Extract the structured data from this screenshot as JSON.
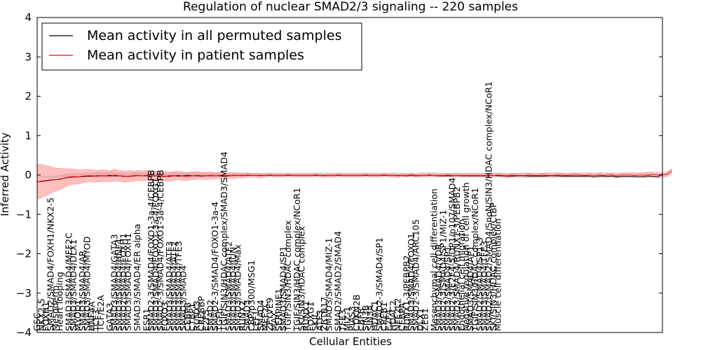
{
  "chart_data": {
    "type": "line",
    "title": "Regulation of nuclear SMAD2/3 signaling -- 220 samples",
    "xlabel": "Cellular Entities",
    "ylabel": "Inferred Activity",
    "ylim": [
      -4,
      4
    ],
    "yticks": [
      -4,
      -3,
      -2,
      -1,
      0,
      1,
      2,
      3,
      4
    ],
    "grid": false,
    "legend_position": "top-left",
    "colors": {
      "permuted_line": "#000000",
      "permuted_band": "#bbbbbb",
      "patient_line": "#ff0000",
      "patient_band": "#ff7070"
    },
    "series": [
      {
        "name": "Mean activity in all permuted samples",
        "key": "permuted",
        "values": [
          -0.18,
          -0.16,
          -0.15,
          -0.13,
          -0.12,
          -0.11,
          -0.08,
          -0.06,
          -0.05,
          -0.05,
          -0.04,
          -0.03,
          -0.03,
          -0.02,
          -0.02,
          -0.02,
          -0.01,
          -0.02,
          -0.02,
          -0.03,
          -0.04,
          -0.02,
          -0.01,
          -0.02,
          -0.02,
          -0.03,
          -0.02,
          -0.03,
          -0.04,
          -0.02,
          -0.02,
          -0.03,
          -0.02,
          -0.01,
          -0.02,
          -0.02,
          -0.03,
          -0.02,
          -0.02,
          -0.02,
          -0.02,
          -0.02,
          -0.02,
          -0.01,
          -0.01,
          -0.01,
          -0.01,
          -0.01,
          -0.01,
          -0.01,
          -0.01,
          -0.01,
          -0.01,
          -0.01,
          -0.01,
          -0.01,
          -0.01,
          -0.01,
          -0.01,
          -0.01,
          -0.01,
          -0.01,
          -0.01,
          -0.01,
          -0.01,
          -0.01,
          -0.01,
          -0.01,
          -0.01,
          -0.01,
          -0.01,
          -0.01,
          -0.01,
          -0.01,
          -0.01,
          -0.01,
          -0.01,
          -0.01,
          -0.01,
          -0.01,
          -0.01,
          -0.02,
          -0.01,
          -0.02,
          -0.01,
          -0.01,
          -0.01,
          -0.01,
          -0.02,
          -0.02,
          -0.02,
          -0.02,
          -0.01,
          -0.02,
          -0.02,
          -0.02,
          -0.02,
          -0.02,
          -0.02,
          -0.02,
          -0.01,
          -0.02,
          -0.02,
          -0.03,
          -0.03,
          -0.02,
          -0.02,
          -0.02,
          -0.03,
          -0.03,
          -0.03,
          -0.03,
          -0.02,
          -0.02,
          -0.02,
          -0.03,
          -0.03,
          -0.03,
          -0.03,
          -0.03,
          -0.03,
          -0.03,
          -0.05,
          -0.03,
          -0.03,
          -0.04,
          -0.03,
          -0.05,
          -0.04,
          -0.04,
          -0.04,
          -0.04,
          -0.05,
          -0.04,
          -0.03,
          -0.04,
          -0.05,
          0.03
        ],
        "band": [
          0.12,
          0.12,
          0.11,
          0.1,
          0.1,
          0.1,
          0.1,
          0.1,
          0.09,
          0.09,
          0.09,
          0.09,
          0.09,
          0.09,
          0.09,
          0.09,
          0.09,
          0.09,
          0.08,
          0.08,
          0.08,
          0.08,
          0.08,
          0.08,
          0.08,
          0.08,
          0.08,
          0.08,
          0.08,
          0.08,
          0.08,
          0.08,
          0.08,
          0.08,
          0.08,
          0.08,
          0.08,
          0.07,
          0.07,
          0.07,
          0.07,
          0.07,
          0.07,
          0.07,
          0.07,
          0.06,
          0.06,
          0.06,
          0.06,
          0.06,
          0.06,
          0.06,
          0.06,
          0.06,
          0.06,
          0.06,
          0.06,
          0.06,
          0.06,
          0.06,
          0.06,
          0.06,
          0.06,
          0.06,
          0.06,
          0.06,
          0.06,
          0.06,
          0.06,
          0.06,
          0.06,
          0.06,
          0.06,
          0.06,
          0.06,
          0.06,
          0.06,
          0.06,
          0.06,
          0.06,
          0.06,
          0.06,
          0.06,
          0.06,
          0.07,
          0.07,
          0.07,
          0.07,
          0.07,
          0.07,
          0.07,
          0.07,
          0.07,
          0.07,
          0.07,
          0.07,
          0.07,
          0.07,
          0.07,
          0.07,
          0.07,
          0.07,
          0.07,
          0.07,
          0.07,
          0.07,
          0.07,
          0.08,
          0.08,
          0.08,
          0.08,
          0.08,
          0.08,
          0.08,
          0.08,
          0.08,
          0.08,
          0.08,
          0.08,
          0.08,
          0.08,
          0.09,
          0.09,
          0.09,
          0.09,
          0.09,
          0.09,
          0.09,
          0.1,
          0.1,
          0.1,
          0.1,
          0.1,
          0.1,
          0.1,
          0.1
        ]
      },
      {
        "name": "Mean activity in patient samples",
        "key": "patient",
        "values": [
          -0.18,
          -0.15,
          -0.14,
          -0.12,
          -0.12,
          -0.1,
          -0.08,
          -0.05,
          -0.04,
          -0.05,
          -0.03,
          -0.02,
          -0.02,
          -0.03,
          -0.02,
          -0.02,
          -0.03,
          0.0,
          -0.02,
          -0.04,
          -0.03,
          -0.03,
          -0.01,
          -0.02,
          -0.01,
          -0.02,
          -0.02,
          -0.02,
          -0.03,
          -0.04,
          -0.02,
          -0.01,
          -0.03,
          -0.04,
          -0.02,
          -0.01,
          -0.02,
          -0.02,
          -0.01,
          -0.02,
          -0.01,
          -0.02,
          -0.01,
          -0.02,
          -0.01,
          -0.02,
          0.0,
          -0.01,
          -0.01,
          -0.02,
          -0.01,
          0.0,
          -0.01,
          -0.01,
          -0.01,
          0.0,
          -0.01,
          -0.01,
          -0.01,
          -0.01,
          -0.01,
          0.0,
          -0.01,
          -0.02,
          -0.01,
          -0.01,
          0.0,
          -0.01,
          -0.01,
          -0.01,
          -0.01,
          -0.01,
          0.0,
          -0.01,
          -0.01,
          -0.01,
          0.0,
          -0.01,
          -0.01,
          -0.02,
          -0.01,
          -0.01,
          0.0,
          -0.01,
          -0.01,
          -0.01,
          0.0,
          -0.01,
          -0.01,
          -0.01,
          0.0,
          -0.01,
          -0.01,
          -0.01,
          -0.01,
          -0.01,
          -0.01,
          -0.01,
          -0.01,
          -0.01,
          -0.01,
          0.0,
          -0.01,
          -0.02,
          0.0,
          -0.01,
          -0.01,
          -0.01,
          0.0,
          -0.01,
          -0.01,
          0.0,
          -0.01,
          -0.01,
          0.0,
          0.0,
          -0.01,
          0.0,
          0.0,
          0.0,
          -0.01,
          0.0,
          -0.01,
          0.0,
          -0.01,
          0.0,
          0.0,
          -0.02,
          0.0,
          0.0,
          0.0,
          -0.01,
          0.0,
          0.0,
          0.0,
          0.01,
          0.0,
          0.0,
          0.02,
          0.1
        ],
        "band": [
          0.45,
          0.42,
          0.38,
          0.34,
          0.3,
          0.27,
          0.24,
          0.21,
          0.19,
          0.18,
          0.17,
          0.16,
          0.16,
          0.15,
          0.15,
          0.15,
          0.14,
          0.15,
          0.14,
          0.14,
          0.14,
          0.13,
          0.13,
          0.13,
          0.13,
          0.12,
          0.12,
          0.12,
          0.12,
          0.12,
          0.11,
          0.11,
          0.11,
          0.1,
          0.1,
          0.1,
          0.09,
          0.09,
          0.09,
          0.08,
          0.08,
          0.07,
          0.07,
          0.07,
          0.06,
          0.06,
          0.06,
          0.05,
          0.05,
          0.05,
          0.04,
          0.04,
          0.04,
          0.04,
          0.04,
          0.04,
          0.04,
          0.04,
          0.04,
          0.04,
          0.04,
          0.04,
          0.04,
          0.04,
          0.04,
          0.04,
          0.04,
          0.04,
          0.04,
          0.04,
          0.04,
          0.04,
          0.04,
          0.04,
          0.04,
          0.04,
          0.04,
          0.04,
          0.04,
          0.04,
          0.04,
          0.04,
          0.04,
          0.04,
          0.04,
          0.04,
          0.04,
          0.04,
          0.04,
          0.04,
          0.04,
          0.04,
          0.04,
          0.04,
          0.04,
          0.04,
          0.04,
          0.04,
          0.04,
          0.04,
          0.04,
          0.04,
          0.05,
          0.05,
          0.05,
          0.05,
          0.05,
          0.05,
          0.05,
          0.05,
          0.05,
          0.05,
          0.05,
          0.05,
          0.05,
          0.05,
          0.05,
          0.05,
          0.05,
          0.05,
          0.05,
          0.05,
          0.05,
          0.05,
          0.05,
          0.05,
          0.05,
          0.05,
          0.05,
          0.05,
          0.05,
          0.05,
          0.05,
          0.06,
          0.06,
          0.06,
          0.06,
          0.06,
          0.06,
          0.06
        ]
      }
    ],
    "entity_labels": [
      {
        "label": "GSC",
        "x": 0
      },
      {
        "label": "NKX2-5",
        "x": 1
      },
      {
        "label": "FOXH1",
        "x": 2
      },
      {
        "label": "SMAD2/SMAD4/FOXH1/NKX2-5",
        "x": 3
      },
      {
        "label": "Mesoderm",
        "x": 4
      },
      {
        "label": "Heart looping",
        "x": 5
      },
      {
        "label": "SMAD3/SMAD4/MEF2C",
        "x": 7
      },
      {
        "label": "SMAD3/SMAD4/DLX1",
        "x": 8
      },
      {
        "label": "MYOD1",
        "x": 9
      },
      {
        "label": "SMAD3/SMAD4/AR",
        "x": 10
      },
      {
        "label": "SMAD3/SMAD4/MYOD",
        "x": 11
      },
      {
        "label": "HNF4A",
        "x": 12
      },
      {
        "label": "TCF3",
        "x": 13
      },
      {
        "label": "TCF/E2A",
        "x": 14
      },
      {
        "label": "GATA3",
        "x": 16
      },
      {
        "label": "SMAD3/SMAD4/GATA3",
        "x": 17
      },
      {
        "label": "SMAD3/SMAD4/HNF4",
        "x": 18
      },
      {
        "label": "SMAD2/SMAD4/FOXH1",
        "x": 19
      },
      {
        "label": "SMAD3/SMAD4/FOXH1",
        "x": 20
      },
      {
        "label": "SMAD3/SMAD4/ER alpha",
        "x": 22
      },
      {
        "label": "ESR1",
        "x": 24
      },
      {
        "label": "SMAD2-3/SMAD4/FOXO1-3a-4/CEBPB",
        "x": 25
      },
      {
        "label": "SMAD3/SMAD4/FOXO1-3a-4/FOXG1",
        "x": 26
      },
      {
        "label": "SMAD2-3/SMAD4/FOXO1-3a-4/CEBPB",
        "x": 27
      },
      {
        "label": "FOXO3",
        "x": 28
      },
      {
        "label": "SMAD3/SMAD4/ATF3",
        "x": 29
      },
      {
        "label": "SMAD3/SMAD4/ATF2",
        "x": 30
      },
      {
        "label": "SMAD3/SMAD4/TFE3",
        "x": 31
      },
      {
        "label": "SMAD3/SMAD4",
        "x": 32
      },
      {
        "label": "CEBPB",
        "x": 33
      },
      {
        "label": "CTBP1",
        "x": 34
      },
      {
        "label": "RUNX3",
        "x": 35
      },
      {
        "label": "CREBBP",
        "x": 36
      },
      {
        "label": "E2F5",
        "x": 37
      },
      {
        "label": "SMAD2",
        "x": 38
      },
      {
        "label": "SMAD2-3/SMAD4/FOXO1-3a-4",
        "x": 39
      },
      {
        "label": "TGFb",
        "x": 40
      },
      {
        "label": "TGIF/SIN3/HDAC complex/SMAD3/SMAD4",
        "x": 41
      },
      {
        "label": "SMAD3/SMAD4/ATF2",
        "x": 42
      },
      {
        "label": "SMAD3/SMAD4/JUN",
        "x": 43
      },
      {
        "label": "SMAD3/SMAD4/Max",
        "x": 44
      },
      {
        "label": "RUNX2",
        "x": 45
      },
      {
        "label": "SMAD3",
        "x": 46
      },
      {
        "label": "CBP/p300/MSG1",
        "x": 47
      },
      {
        "label": "LEF1",
        "x": 48
      },
      {
        "label": "SMAD4",
        "x": 49
      },
      {
        "label": "MEF2C",
        "x": 50
      },
      {
        "label": "ZFYVE9",
        "x": 51
      },
      {
        "label": "MAX",
        "x": 52
      },
      {
        "label": "SERPINE1",
        "x": 53
      },
      {
        "label": "SMAD3/SMAD4/SP1",
        "x": 54
      },
      {
        "label": "TGIF/SIN3/HDAC complex",
        "x": 55
      },
      {
        "label": "TGIF/SIN3/HDAC complex/NCoR1",
        "x": 57
      },
      {
        "label": "SKI/SIN3/HDAC complex",
        "x": 58
      },
      {
        "label": "RUNX1",
        "x": 59
      },
      {
        "label": "FOXG1",
        "x": 60
      },
      {
        "label": "SKIL",
        "x": 61
      },
      {
        "label": "ATF3",
        "x": 62
      },
      {
        "label": "ZBTB17",
        "x": 63
      },
      {
        "label": "SMAD3/SMAD4/MIZ-1",
        "x": 64
      },
      {
        "label": "SMAD2/SMAD2/SMAD4",
        "x": 66
      },
      {
        "label": "TFE3",
        "x": 67
      },
      {
        "label": "MIZ-1",
        "x": 68
      },
      {
        "label": "PIAS3",
        "x": 69
      },
      {
        "label": "CDKN2B",
        "x": 70
      },
      {
        "label": "CBFB",
        "x": 71
      },
      {
        "label": "SIN3B",
        "x": 72
      },
      {
        "label": "SIN3A",
        "x": 73
      },
      {
        "label": "HDAC1",
        "x": 74
      },
      {
        "label": "SMAD2-3/SMAD4/SP1",
        "x": 75
      },
      {
        "label": "CREB1",
        "x": 76
      },
      {
        "label": "E2F4",
        "x": 77
      },
      {
        "label": "HDAC2",
        "x": 78
      },
      {
        "label": "NFE2L2",
        "x": 79
      },
      {
        "label": "CEBPA",
        "x": 80
      },
      {
        "label": "RUNX1-3/PEBPB2",
        "x": 81
      },
      {
        "label": "SMAD3/SMAD4/FOXO1",
        "x": 82
      },
      {
        "label": "SMAD2-3/SMAD4/ARC105",
        "x": 83
      },
      {
        "label": "DLX1",
        "x": 84
      },
      {
        "label": "ZEB1",
        "x": 85
      },
      {
        "label": "Mesenchymal cell differentiation",
        "x": 87
      },
      {
        "label": "SMAD3/SMAD4/VDR",
        "x": 88
      },
      {
        "label": "SMAD2-3/SMAD4/SP1/MIZ-1",
        "x": 89
      },
      {
        "label": "SMAD3/SMAD4/SP1",
        "x": 90
      },
      {
        "label": "SMAD2-3/E2F4-5/DP1/p107/SMAD4",
        "x": 91
      },
      {
        "label": "SMAD3/SMAD4/RUNX1-3/PEBPB2",
        "x": 92
      },
      {
        "label": "Endothelial cell migration",
        "x": 93
      },
      {
        "label": "Negative regulation of cell growth",
        "x": 94
      },
      {
        "label": "SMAD3/SMAD4/AP1",
        "x": 95
      },
      {
        "label": "TGIF/SIN3/HDAC complex/NCoR1",
        "x": 96
      },
      {
        "label": "SMAD2/SMAD4/SP1-3",
        "x": 97
      },
      {
        "label": "SMAD3/SMAD4/TFE3",
        "x": 98
      },
      {
        "label": "SMAD2/SMAD2/SMAD4/SnoN/SIN3/HDAC complex/NCoR1",
        "x": 99
      },
      {
        "label": "SKI/SIN3/HDAC complex/CtBP",
        "x": 100
      },
      {
        "label": "Muscle cell differentiation",
        "x": 101
      }
    ],
    "legend": [
      {
        "label": "Mean activity in all permuted samples",
        "series": "permuted"
      },
      {
        "label": "Mean activity in patient samples",
        "series": "patient"
      }
    ]
  }
}
